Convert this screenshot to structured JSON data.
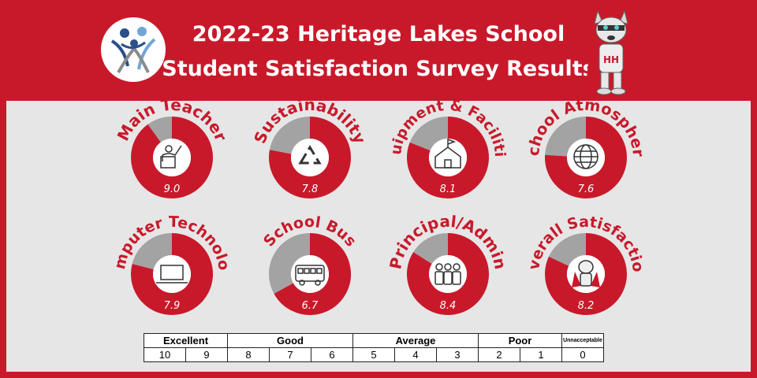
{
  "header": {
    "title_line1": "2022-23 Heritage Lakes School",
    "title_line2": "Student Satisfaction Survey Results"
  },
  "colors": {
    "brand_red": "#c8192a",
    "gauge_red": "#c8192a",
    "gauge_gray": "#a3a3a3",
    "panel": "#e6e6e6"
  },
  "chart_data": {
    "type": "donut-gauges",
    "scale_max": 10,
    "gauges": [
      {
        "label": "Main Teacher",
        "value": 9.0,
        "value_text": "9.0",
        "icon": "teacher-icon"
      },
      {
        "label": "Sustainability",
        "value": 7.8,
        "value_text": "7.8",
        "icon": "recycle-icon"
      },
      {
        "label": "Equipment & Facilities",
        "value": 8.1,
        "value_text": "8.1",
        "icon": "schoolhouse-icon"
      },
      {
        "label": "School Atmosphere",
        "value": 7.6,
        "value_text": "7.6",
        "icon": "globe-icon"
      },
      {
        "label": "Computer Technology",
        "value": 7.9,
        "value_text": "7.9",
        "icon": "laptop-icon"
      },
      {
        "label": "School Bus",
        "value": 6.7,
        "value_text": "6.7",
        "icon": "bus-icon"
      },
      {
        "label": "Principal/Admin",
        "value": 8.4,
        "value_text": "8.4",
        "icon": "group-icon"
      },
      {
        "label": "Overall Satisfaction",
        "value": 8.2,
        "value_text": "8.2",
        "icon": "mascot-icon"
      }
    ]
  },
  "scale": {
    "categories": [
      "Excellent",
      "Good",
      "Average",
      "Poor",
      "Unnacceptable"
    ],
    "numbers": [
      "10",
      "9",
      "8",
      "7",
      "6",
      "5",
      "4",
      "3",
      "2",
      "1",
      "0"
    ]
  }
}
